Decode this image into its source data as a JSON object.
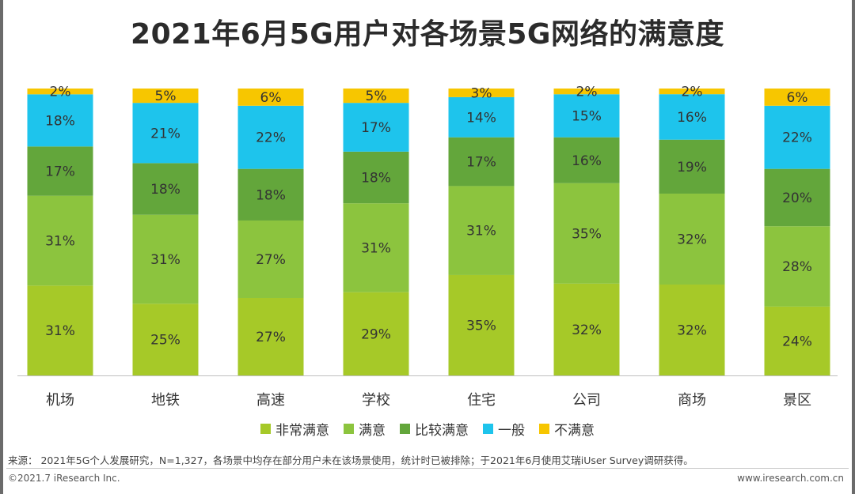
{
  "colors": {
    "very_satisfied": "#a6c928",
    "satisfied": "#8cc43e",
    "fairly_satisfied": "#63a63b",
    "average": "#1ec4ec",
    "unsatisfied": "#f7c600"
  },
  "chart_data": {
    "type": "bar",
    "stacked": true,
    "title": "2021年6月5G用户对各场景5G网络的满意度",
    "unit": "%",
    "categories": [
      "机场",
      "地铁",
      "高速",
      "学校",
      "住宅",
      "公司",
      "商场",
      "景区"
    ],
    "series": [
      {
        "name": "非常满意",
        "color_key": "very_satisfied",
        "values": [
          31,
          25,
          27,
          29,
          35,
          32,
          32,
          24
        ]
      },
      {
        "name": "满意",
        "color_key": "satisfied",
        "values": [
          31,
          31,
          27,
          31,
          31,
          35,
          32,
          28
        ]
      },
      {
        "name": "比较满意",
        "color_key": "fairly_satisfied",
        "values": [
          17,
          18,
          18,
          18,
          17,
          16,
          19,
          20
        ]
      },
      {
        "name": "一般",
        "color_key": "average",
        "values": [
          18,
          21,
          22,
          17,
          14,
          15,
          16,
          22
        ]
      },
      {
        "name": "不满意",
        "color_key": "unsatisfied",
        "values": [
          2,
          5,
          6,
          5,
          3,
          2,
          2,
          6
        ]
      }
    ],
    "ylim": [
      0,
      100
    ],
    "legend_position": "bottom"
  },
  "footer": {
    "source": "来源： 2021年5G个人发展研究，N=1,327，各场景中均存在部分用户未在该场景使用，统计时已被排除；于2021年6月使用艾瑞iUser Survey调研获得。",
    "copyright": "©2021.7 iResearch Inc.",
    "website": "www.iresearch.com.cn"
  }
}
